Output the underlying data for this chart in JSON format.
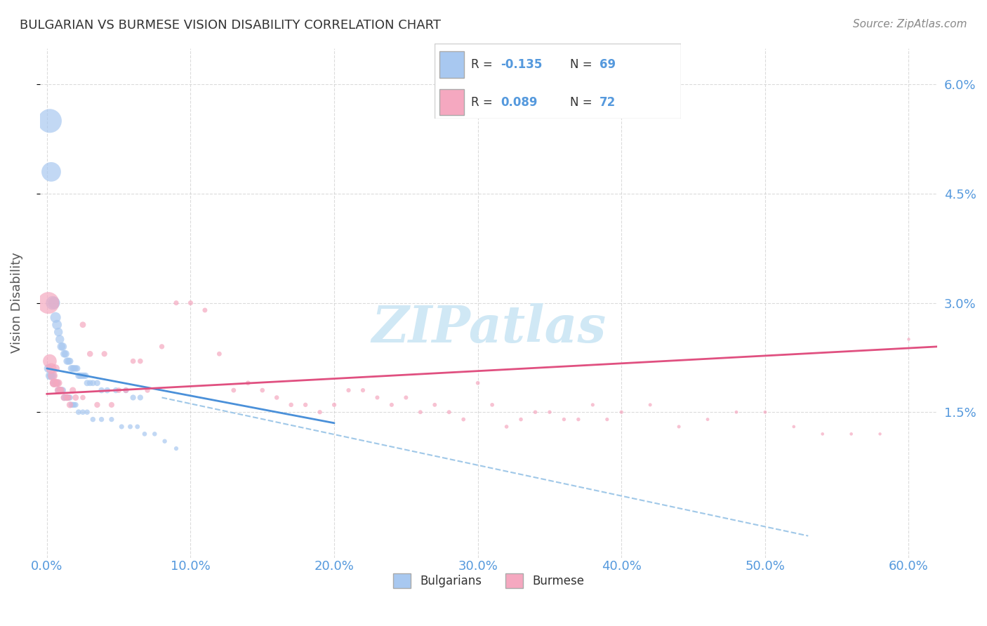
{
  "title": "BULGARIAN VS BURMESE VISION DISABILITY CORRELATION CHART",
  "source": "Source: ZipAtlas.com",
  "xlabel_bottom": "",
  "ylabel": "Vision Disability",
  "x_tick_labels": [
    "0.0%",
    "10.0%",
    "20.0%",
    "30.0%",
    "40.0%",
    "50.0%",
    "60.0%"
  ],
  "x_tick_vals": [
    0.0,
    0.1,
    0.2,
    0.3,
    0.4,
    0.5,
    0.6
  ],
  "y_tick_labels": [
    "1.5%",
    "3.0%",
    "4.5%",
    "6.0%"
  ],
  "y_tick_vals": [
    0.015,
    0.03,
    0.045,
    0.06
  ],
  "xlim": [
    -0.005,
    0.62
  ],
  "ylim": [
    -0.005,
    0.065
  ],
  "legend_r1": "R = -0.135",
  "legend_n1": "N = 69",
  "legend_r2": "R = 0.089",
  "legend_n2": "N = 72",
  "bulgarian_color": "#a8c8f0",
  "burmese_color": "#f5a8c0",
  "trendline_bulgarian_color": "#4a90d9",
  "trendline_burmese_color": "#e05080",
  "trendline_dashed_color": "#a0c8e8",
  "watermark_color": "#d0e8f5",
  "grid_color": "#cccccc",
  "right_tick_color": "#5599dd",
  "title_color": "#333333",
  "bulgarians_x": [
    0.002,
    0.003,
    0.004,
    0.005,
    0.006,
    0.007,
    0.008,
    0.009,
    0.01,
    0.011,
    0.012,
    0.013,
    0.014,
    0.015,
    0.016,
    0.017,
    0.018,
    0.019,
    0.02,
    0.021,
    0.022,
    0.023,
    0.024,
    0.025,
    0.026,
    0.027,
    0.028,
    0.03,
    0.032,
    0.035,
    0.038,
    0.042,
    0.048,
    0.055,
    0.06,
    0.065,
    0.001,
    0.002,
    0.003,
    0.004,
    0.005,
    0.006,
    0.007,
    0.008,
    0.009,
    0.01,
    0.011,
    0.012,
    0.013,
    0.014,
    0.015,
    0.016,
    0.017,
    0.018,
    0.019,
    0.02,
    0.022,
    0.025,
    0.028,
    0.032,
    0.038,
    0.045,
    0.052,
    0.058,
    0.063,
    0.068,
    0.075,
    0.082,
    0.09
  ],
  "bulgarians_y": [
    0.055,
    0.048,
    0.03,
    0.03,
    0.028,
    0.027,
    0.026,
    0.025,
    0.024,
    0.024,
    0.023,
    0.023,
    0.022,
    0.022,
    0.022,
    0.021,
    0.021,
    0.021,
    0.021,
    0.021,
    0.02,
    0.02,
    0.02,
    0.02,
    0.02,
    0.02,
    0.019,
    0.019,
    0.019,
    0.019,
    0.018,
    0.018,
    0.018,
    0.018,
    0.017,
    0.017,
    0.021,
    0.02,
    0.02,
    0.02,
    0.019,
    0.019,
    0.019,
    0.018,
    0.018,
    0.018,
    0.018,
    0.017,
    0.017,
    0.017,
    0.017,
    0.017,
    0.016,
    0.016,
    0.016,
    0.016,
    0.015,
    0.015,
    0.015,
    0.014,
    0.014,
    0.014,
    0.013,
    0.013,
    0.013,
    0.012,
    0.012,
    0.011,
    0.01
  ],
  "burmese_x": [
    0.001,
    0.002,
    0.003,
    0.004,
    0.005,
    0.006,
    0.007,
    0.008,
    0.009,
    0.01,
    0.012,
    0.014,
    0.016,
    0.018,
    0.02,
    0.025,
    0.03,
    0.035,
    0.04,
    0.045,
    0.05,
    0.055,
    0.06,
    0.065,
    0.07,
    0.08,
    0.09,
    0.1,
    0.11,
    0.12,
    0.13,
    0.14,
    0.15,
    0.16,
    0.17,
    0.18,
    0.19,
    0.2,
    0.21,
    0.22,
    0.23,
    0.24,
    0.25,
    0.26,
    0.27,
    0.28,
    0.29,
    0.3,
    0.31,
    0.32,
    0.33,
    0.34,
    0.35,
    0.36,
    0.37,
    0.38,
    0.39,
    0.4,
    0.42,
    0.44,
    0.46,
    0.48,
    0.5,
    0.52,
    0.54,
    0.56,
    0.58,
    0.6,
    0.005,
    0.008,
    0.015,
    0.025
  ],
  "burmese_y": [
    0.03,
    0.022,
    0.021,
    0.02,
    0.019,
    0.021,
    0.019,
    0.019,
    0.018,
    0.018,
    0.017,
    0.017,
    0.016,
    0.018,
    0.017,
    0.027,
    0.023,
    0.016,
    0.023,
    0.016,
    0.018,
    0.018,
    0.022,
    0.022,
    0.018,
    0.024,
    0.03,
    0.03,
    0.029,
    0.023,
    0.018,
    0.019,
    0.018,
    0.017,
    0.016,
    0.016,
    0.015,
    0.016,
    0.018,
    0.018,
    0.017,
    0.016,
    0.017,
    0.015,
    0.016,
    0.015,
    0.014,
    0.019,
    0.016,
    0.013,
    0.014,
    0.015,
    0.015,
    0.014,
    0.014,
    0.016,
    0.014,
    0.015,
    0.016,
    0.013,
    0.014,
    0.015,
    0.015,
    0.013,
    0.012,
    0.012,
    0.012,
    0.025,
    0.019,
    0.018,
    0.017,
    0.017
  ],
  "bulgarians_sizes": [
    600,
    400,
    200,
    150,
    120,
    100,
    80,
    80,
    70,
    70,
    60,
    60,
    55,
    55,
    50,
    50,
    48,
    48,
    45,
    45,
    44,
    44,
    43,
    43,
    42,
    42,
    42,
    40,
    40,
    40,
    38,
    38,
    36,
    36,
    35,
    35,
    80,
    75,
    70,
    65,
    60,
    58,
    55,
    52,
    50,
    48,
    46,
    44,
    42,
    40,
    40,
    38,
    36,
    35,
    34,
    33,
    32,
    31,
    30,
    29,
    28,
    27,
    26,
    25,
    24,
    23,
    22,
    21,
    20
  ],
  "burmese_sizes": [
    500,
    200,
    120,
    100,
    80,
    70,
    65,
    60,
    55,
    52,
    50,
    48,
    46,
    44,
    42,
    40,
    38,
    36,
    35,
    34,
    32,
    32,
    30,
    30,
    28,
    28,
    26,
    26,
    25,
    24,
    24,
    23,
    23,
    22,
    22,
    21,
    21,
    20,
    20,
    20,
    19,
    19,
    19,
    18,
    18,
    18,
    17,
    17,
    17,
    16,
    16,
    16,
    15,
    15,
    15,
    14,
    14,
    14,
    13,
    13,
    12,
    12,
    12,
    11,
    11,
    11,
    10,
    10,
    80,
    60,
    40,
    30
  ]
}
